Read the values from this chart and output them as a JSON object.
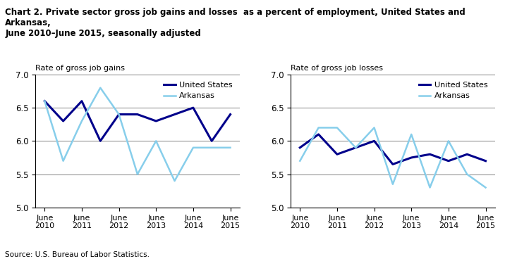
{
  "title": "Chart 2. Private sector gross job gains and losses  as a percent of employment, United States and Arkansas,\nJune 2010–June 2015, seasonally adjusted",
  "source": "Source: U.S. Bureau of Labor Statistics.",
  "left_ylabel": "Rate of gross job gains",
  "right_ylabel": "Rate of gross job losses",
  "ylim": [
    5.0,
    7.0
  ],
  "yticks": [
    5.0,
    5.5,
    6.0,
    6.5,
    7.0
  ],
  "x_labels": [
    "June\n2010",
    "June\n2011",
    "June\n2012",
    "June\n2013",
    "June\n2014",
    "June\n2015"
  ],
  "x_positions": [
    0,
    2,
    4,
    6,
    8,
    10
  ],
  "gains_us": [
    6.6,
    6.3,
    6.6,
    6.0,
    6.4,
    6.4,
    6.3,
    6.4,
    6.5,
    6.0,
    6.4
  ],
  "gains_ar": [
    6.6,
    5.7,
    6.3,
    6.8,
    6.4,
    5.5,
    6.0,
    5.4,
    5.9,
    5.9,
    5.9
  ],
  "losses_us": [
    5.9,
    6.1,
    5.8,
    5.9,
    6.0,
    5.65,
    5.75,
    5.8,
    5.7,
    5.8,
    5.7
  ],
  "losses_ar": [
    5.7,
    6.2,
    6.2,
    5.9,
    6.2,
    5.35,
    6.1,
    5.3,
    6.0,
    5.5,
    5.3
  ],
  "color_us": "#00008B",
  "color_ar": "#87CEEB",
  "linewidth_us": 2.2,
  "linewidth_ar": 1.8,
  "legend_us": "United States",
  "legend_ar": "Arkansas",
  "background_color": "#ffffff"
}
